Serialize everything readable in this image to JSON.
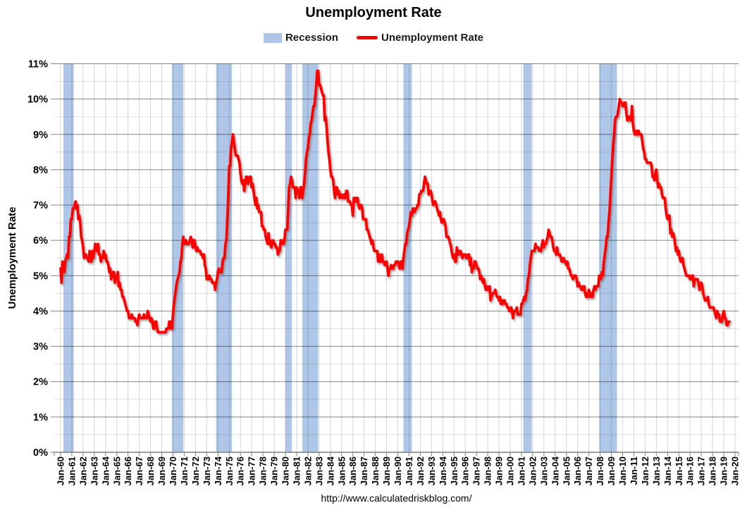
{
  "title": "Unemployment Rate",
  "footer": "http://www.calculatedriskblog.com/",
  "legend": [
    {
      "label": "Recession",
      "color": "#AEC7E8",
      "swatch": "band"
    },
    {
      "label": "Unemployment Rate",
      "color": "#FF0000",
      "swatch": "line"
    }
  ],
  "colors": {
    "recession_band": "#AEC7E8",
    "line": "#FF0000",
    "axis": "#7F7F7F"
  },
  "chart_data": {
    "type": "line",
    "title": "Unemployment Rate",
    "xlabel": "",
    "ylabel": "Unemployment Rate",
    "ylim": [
      0,
      11
    ],
    "y_ticks": [
      "0%",
      "1%",
      "2%",
      "3%",
      "4%",
      "5%",
      "6%",
      "7%",
      "8%",
      "9%",
      "10%",
      "11%"
    ],
    "x_ticks": [
      "Jan-60",
      "Jan-61",
      "Jan-62",
      "Jan-63",
      "Jan-64",
      "Jan-65",
      "Jan-66",
      "Jan-67",
      "Jan-68",
      "Jan-69",
      "Jan-70",
      "Jan-71",
      "Jan-72",
      "Jan-73",
      "Jan-74",
      "Jan-75",
      "Jan-76",
      "Jan-77",
      "Jan-78",
      "Jan-79",
      "Jan-80",
      "Jan-81",
      "Jan-82",
      "Jan-83",
      "Jan-84",
      "Jan-85",
      "Jan-86",
      "Jan-87",
      "Jan-88",
      "Jan-89",
      "Jan-90",
      "Jan-91",
      "Jan-92",
      "Jan-93",
      "Jan-94",
      "Jan-95",
      "Jan-96",
      "Jan-97",
      "Jan-98",
      "Jan-99",
      "Jan-00",
      "Jan-01",
      "Jan-02",
      "Jan-03",
      "Jan-04",
      "Jan-05",
      "Jan-06",
      "Jan-07",
      "Jan-08",
      "Jan-09",
      "Jan-10",
      "Jan-11",
      "Jan-12",
      "Jan-13",
      "Jan-14",
      "Jan-15",
      "Jan-16",
      "Jan-17",
      "Jan-18",
      "Jan-19",
      "Jan-20"
    ],
    "grid": {
      "major_horizontal": true,
      "minor_horizontal_step": 0.5,
      "vertical_per_year": true
    },
    "legend_position": "top",
    "recessions": {
      "name": "Recession",
      "color": "#AEC7E8",
      "periods": [
        [
          "Apr-1960",
          "Feb-1961"
        ],
        [
          "Dec-1969",
          "Nov-1970"
        ],
        [
          "Nov-1973",
          "Mar-1975"
        ],
        [
          "Jan-1980",
          "Jul-1980"
        ],
        [
          "Jul-1981",
          "Nov-1982"
        ],
        [
          "Jul-1990",
          "Mar-1991"
        ],
        [
          "Mar-2001",
          "Nov-2001"
        ],
        [
          "Dec-2007",
          "Jun-2009"
        ]
      ]
    },
    "series": [
      {
        "name": "Unemployment Rate",
        "color": "#FF0000",
        "frequency": "monthly",
        "start": "Jan-1960",
        "end": "Jul-2019",
        "unit": "%",
        "values_by_year": {
          "1960": [
            5.2,
            4.8,
            5.4,
            5.2,
            5.1,
            5.4,
            5.5,
            5.6,
            5.5,
            6.1,
            6.1,
            6.6
          ],
          "1961": [
            6.6,
            6.9,
            6.9,
            7.0,
            7.1,
            6.9,
            7.0,
            6.6,
            6.7,
            6.5,
            6.1,
            6.0
          ],
          "1962": [
            5.8,
            5.5,
            5.6,
            5.6,
            5.5,
            5.5,
            5.4,
            5.7,
            5.6,
            5.4,
            5.7,
            5.5
          ],
          "1963": [
            5.7,
            5.9,
            5.7,
            5.7,
            5.9,
            5.6,
            5.6,
            5.4,
            5.5,
            5.5,
            5.7,
            5.5
          ],
          "1964": [
            5.6,
            5.4,
            5.4,
            5.3,
            5.1,
            5.2,
            4.9,
            5.0,
            5.1,
            5.1,
            4.8,
            5.0
          ],
          "1965": [
            4.9,
            5.1,
            4.7,
            4.8,
            4.6,
            4.6,
            4.4,
            4.4,
            4.3,
            4.2,
            4.1,
            4.0
          ],
          "1966": [
            4.0,
            3.8,
            3.8,
            3.8,
            3.9,
            3.8,
            3.8,
            3.8,
            3.7,
            3.7,
            3.6,
            3.8
          ],
          "1967": [
            3.9,
            3.8,
            3.8,
            3.8,
            3.8,
            3.9,
            3.8,
            3.8,
            3.8,
            4.0,
            3.9,
            3.8
          ],
          "1968": [
            3.7,
            3.8,
            3.7,
            3.5,
            3.5,
            3.7,
            3.7,
            3.5,
            3.4,
            3.4,
            3.4,
            3.4
          ],
          "1969": [
            3.4,
            3.4,
            3.4,
            3.4,
            3.4,
            3.5,
            3.5,
            3.5,
            3.7,
            3.7,
            3.5,
            3.5
          ],
          "1970": [
            3.9,
            4.2,
            4.4,
            4.6,
            4.8,
            4.9,
            5.0,
            5.1,
            5.4,
            5.5,
            5.9,
            6.1
          ],
          "1971": [
            5.9,
            5.9,
            6.0,
            5.9,
            5.9,
            5.9,
            6.0,
            6.1,
            6.0,
            5.8,
            6.0,
            6.0
          ],
          "1972": [
            5.8,
            5.7,
            5.8,
            5.7,
            5.7,
            5.7,
            5.6,
            5.6,
            5.5,
            5.6,
            5.3,
            5.2
          ],
          "1973": [
            4.9,
            5.0,
            4.9,
            5.0,
            4.9,
            4.9,
            4.8,
            4.8,
            4.8,
            4.6,
            4.8,
            4.9
          ],
          "1974": [
            5.1,
            5.2,
            5.1,
            5.1,
            5.1,
            5.4,
            5.5,
            5.5,
            5.9,
            6.0,
            6.6,
            7.2
          ],
          "1975": [
            8.1,
            8.1,
            8.6,
            8.8,
            9.0,
            8.8,
            8.6,
            8.4,
            8.4,
            8.4,
            8.3,
            8.2
          ],
          "1976": [
            7.9,
            7.7,
            7.6,
            7.7,
            7.4,
            7.6,
            7.8,
            7.8,
            7.6,
            7.7,
            7.8,
            7.8
          ],
          "1977": [
            7.5,
            7.6,
            7.4,
            7.2,
            7.0,
            7.2,
            6.9,
            7.0,
            6.8,
            6.8,
            6.8,
            6.4
          ],
          "1978": [
            6.4,
            6.3,
            6.3,
            6.1,
            6.0,
            5.9,
            6.2,
            5.9,
            6.0,
            5.8,
            5.9,
            6.0
          ],
          "1979": [
            5.9,
            5.9,
            5.8,
            5.8,
            5.6,
            5.7,
            5.7,
            6.0,
            5.9,
            6.0,
            5.9,
            6.0
          ],
          "1980": [
            6.3,
            6.3,
            6.3,
            6.9,
            7.5,
            7.6,
            7.8,
            7.7,
            7.5,
            7.5,
            7.5,
            7.2
          ],
          "1981": [
            7.5,
            7.4,
            7.4,
            7.2,
            7.5,
            7.5,
            7.2,
            7.4,
            7.6,
            7.9,
            8.3,
            8.5
          ],
          "1982": [
            8.6,
            8.9,
            9.0,
            9.3,
            9.4,
            9.6,
            9.8,
            9.8,
            10.1,
            10.4,
            10.8,
            10.8
          ],
          "1983": [
            10.4,
            10.4,
            10.3,
            10.2,
            10.1,
            10.1,
            9.4,
            9.5,
            9.2,
            8.8,
            8.5,
            8.3
          ],
          "1984": [
            8.0,
            7.8,
            7.8,
            7.7,
            7.4,
            7.2,
            7.5,
            7.5,
            7.3,
            7.4,
            7.2,
            7.3
          ],
          "1985": [
            7.3,
            7.2,
            7.2,
            7.3,
            7.2,
            7.4,
            7.4,
            7.1,
            7.1,
            7.1,
            7.0,
            7.0
          ],
          "1986": [
            6.7,
            7.2,
            7.2,
            7.1,
            7.2,
            7.2,
            7.0,
            6.9,
            7.0,
            7.0,
            6.9,
            6.6
          ],
          "1987": [
            6.6,
            6.6,
            6.6,
            6.3,
            6.3,
            6.2,
            6.1,
            6.0,
            5.9,
            6.0,
            5.8,
            5.7
          ],
          "1988": [
            5.7,
            5.7,
            5.7,
            5.4,
            5.6,
            5.4,
            5.4,
            5.6,
            5.4,
            5.4,
            5.3,
            5.3
          ],
          "1989": [
            5.4,
            5.2,
            5.0,
            5.2,
            5.2,
            5.3,
            5.2,
            5.2,
            5.3,
            5.3,
            5.4,
            5.4
          ],
          "1990": [
            5.4,
            5.3,
            5.2,
            5.4,
            5.4,
            5.2,
            5.5,
            5.7,
            5.9,
            5.9,
            6.2,
            6.3
          ],
          "1991": [
            6.4,
            6.6,
            6.8,
            6.7,
            6.9,
            6.9,
            6.8,
            6.9,
            6.9,
            7.0,
            7.0,
            7.3
          ],
          "1992": [
            7.3,
            7.4,
            7.4,
            7.4,
            7.6,
            7.8,
            7.7,
            7.6,
            7.6,
            7.3,
            7.4,
            7.4
          ],
          "1993": [
            7.3,
            7.1,
            7.0,
            7.1,
            7.1,
            7.0,
            6.9,
            6.8,
            6.7,
            6.8,
            6.6,
            6.5
          ],
          "1994": [
            6.6,
            6.6,
            6.5,
            6.4,
            6.1,
            6.1,
            6.1,
            6.0,
            5.9,
            5.8,
            5.6,
            5.5
          ],
          "1995": [
            5.6,
            5.4,
            5.4,
            5.8,
            5.6,
            5.6,
            5.7,
            5.7,
            5.6,
            5.5,
            5.6,
            5.6
          ],
          "1996": [
            5.6,
            5.5,
            5.5,
            5.6,
            5.6,
            5.3,
            5.5,
            5.1,
            5.2,
            5.2,
            5.4,
            5.4
          ],
          "1997": [
            5.3,
            5.2,
            5.2,
            5.1,
            4.9,
            5.0,
            4.9,
            4.8,
            4.9,
            4.7,
            4.6,
            4.7
          ],
          "1998": [
            4.6,
            4.6,
            4.7,
            4.3,
            4.4,
            4.5,
            4.5,
            4.5,
            4.6,
            4.5,
            4.4,
            4.4
          ],
          "1999": [
            4.3,
            4.4,
            4.2,
            4.3,
            4.2,
            4.3,
            4.3,
            4.2,
            4.2,
            4.1,
            4.1,
            4.0
          ],
          "2000": [
            4.0,
            4.1,
            4.0,
            3.8,
            4.0,
            4.0,
            4.0,
            4.1,
            3.9,
            3.9,
            3.9,
            3.9
          ],
          "2001": [
            4.2,
            4.2,
            4.3,
            4.4,
            4.3,
            4.5,
            4.6,
            4.9,
            5.0,
            5.3,
            5.5,
            5.7
          ],
          "2002": [
            5.7,
            5.7,
            5.7,
            5.9,
            5.8,
            5.8,
            5.8,
            5.7,
            5.7,
            5.7,
            5.9,
            6.0
          ],
          "2003": [
            5.8,
            5.9,
            5.9,
            6.0,
            6.1,
            6.3,
            6.2,
            6.1,
            6.1,
            6.0,
            5.8,
            5.7
          ],
          "2004": [
            5.7,
            5.6,
            5.8,
            5.6,
            5.6,
            5.6,
            5.5,
            5.4,
            5.4,
            5.5,
            5.4,
            5.4
          ],
          "2005": [
            5.3,
            5.4,
            5.2,
            5.2,
            5.1,
            5.0,
            5.0,
            4.9,
            5.0,
            5.0,
            5.0,
            4.9
          ],
          "2006": [
            4.7,
            4.8,
            4.7,
            4.7,
            4.6,
            4.6,
            4.7,
            4.7,
            4.5,
            4.4,
            4.5,
            4.4
          ],
          "2007": [
            4.6,
            4.5,
            4.4,
            4.5,
            4.4,
            4.6,
            4.7,
            4.6,
            4.7,
            4.7,
            4.7,
            5.0
          ],
          "2008": [
            5.0,
            4.9,
            5.1,
            5.0,
            5.4,
            5.6,
            5.8,
            6.1,
            6.1,
            6.5,
            6.8,
            7.3
          ],
          "2009": [
            7.8,
            8.3,
            8.7,
            9.0,
            9.4,
            9.5,
            9.5,
            9.6,
            9.8,
            10.0,
            9.9,
            9.9
          ],
          "2010": [
            9.8,
            9.8,
            9.9,
            9.9,
            9.6,
            9.4,
            9.4,
            9.5,
            9.5,
            9.4,
            9.8,
            9.3
          ],
          "2011": [
            9.1,
            9.0,
            9.0,
            9.1,
            9.0,
            9.1,
            9.0,
            9.0,
            9.0,
            8.8,
            8.6,
            8.5
          ],
          "2012": [
            8.3,
            8.3,
            8.2,
            8.2,
            8.2,
            8.2,
            8.2,
            8.1,
            7.8,
            7.8,
            7.7,
            7.9
          ],
          "2013": [
            8.0,
            7.7,
            7.5,
            7.6,
            7.5,
            7.5,
            7.3,
            7.2,
            7.2,
            7.2,
            6.9,
            6.7
          ],
          "2014": [
            6.6,
            6.7,
            6.7,
            6.2,
            6.3,
            6.1,
            6.2,
            6.1,
            5.9,
            5.7,
            5.8,
            5.6
          ],
          "2015": [
            5.7,
            5.5,
            5.4,
            5.4,
            5.5,
            5.3,
            5.2,
            5.1,
            5.0,
            5.0,
            5.0,
            5.0
          ],
          "2016": [
            4.9,
            4.9,
            5.0,
            5.0,
            4.7,
            4.9,
            4.9,
            4.9,
            4.9,
            4.8,
            4.6,
            4.7
          ],
          "2017": [
            4.8,
            4.7,
            4.5,
            4.4,
            4.3,
            4.3,
            4.3,
            4.4,
            4.2,
            4.1,
            4.1,
            4.1
          ],
          "2018": [
            4.1,
            4.1,
            4.0,
            3.9,
            3.8,
            4.0,
            3.9,
            3.9,
            3.7,
            3.7,
            3.7,
            3.9
          ],
          "2019": [
            4.0,
            3.8,
            3.8,
            3.6,
            3.6,
            3.7,
            3.7
          ]
        }
      }
    ]
  }
}
